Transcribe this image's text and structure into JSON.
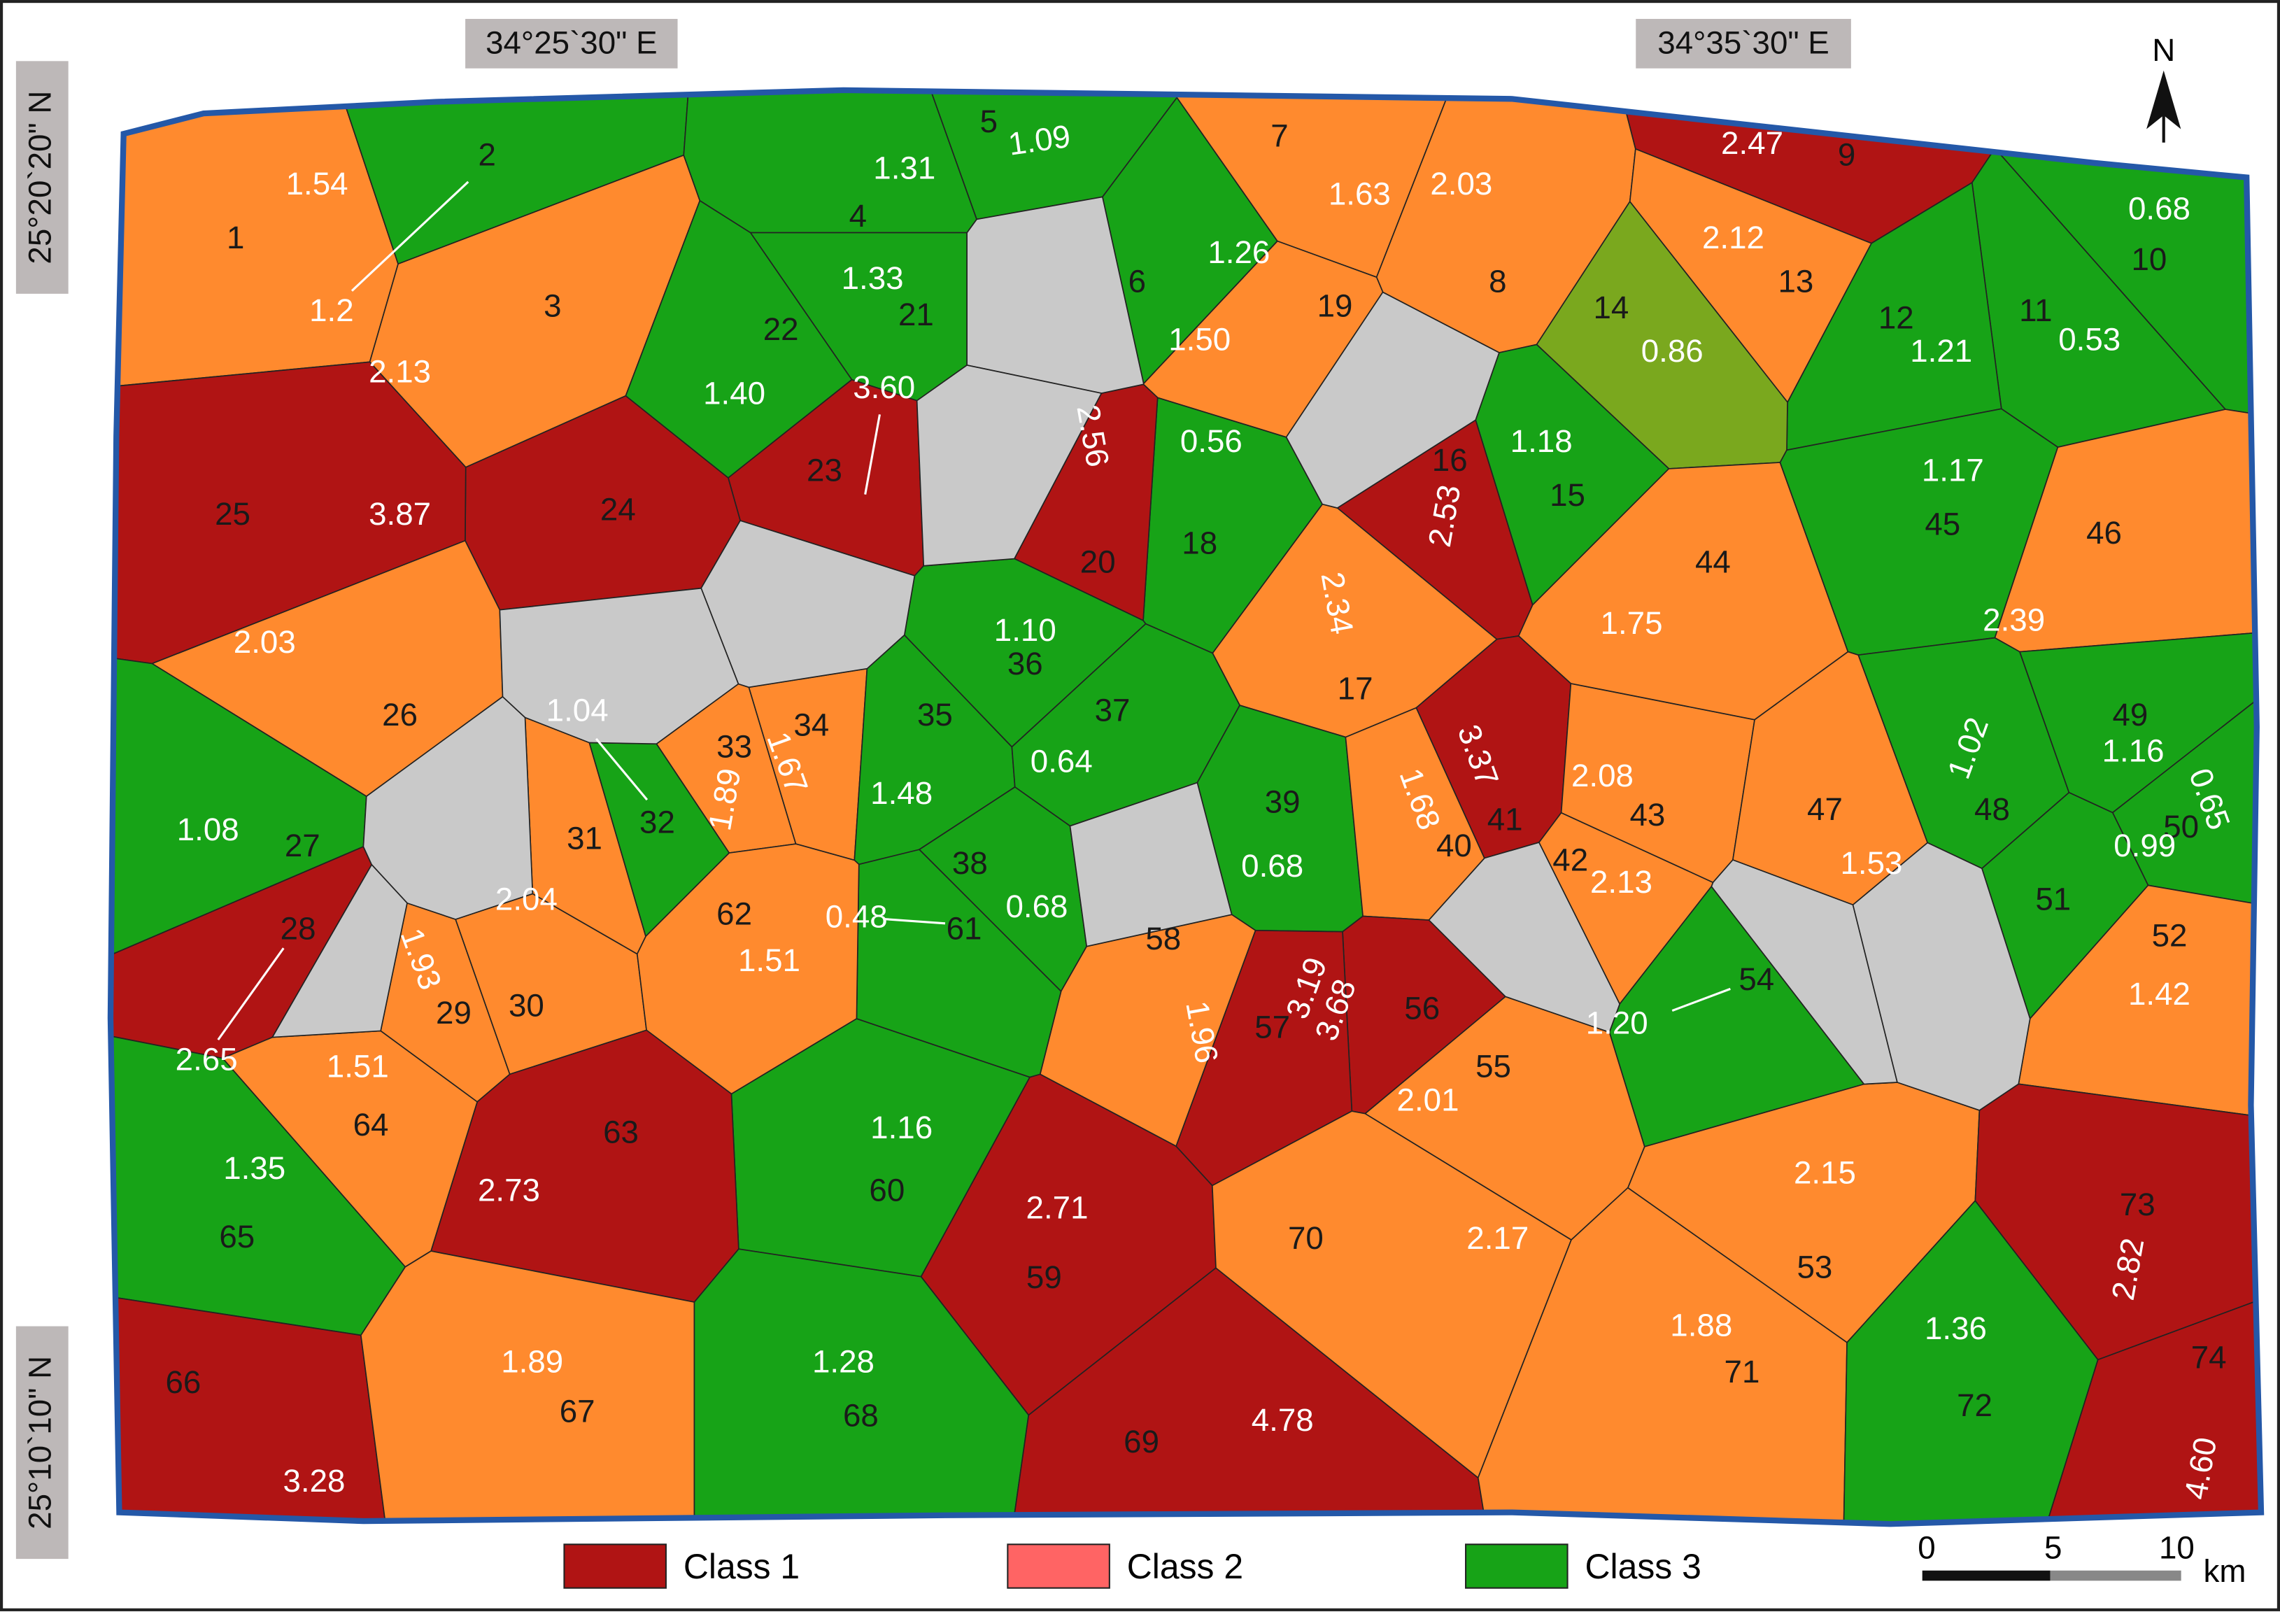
{
  "coordinates": {
    "top_left": "34°25`30\" E",
    "top_right": "34°35`30\" E",
    "left_top": "25°20`20\" N",
    "left_bottom": "25°10`10\" N"
  },
  "north": "N",
  "basins": [
    {
      "id": "1",
      "value": "1.54",
      "color": "#ff8a2e"
    },
    {
      "id": "2",
      "value": "1.2",
      "color": "#17a317"
    },
    {
      "id": "3",
      "value": "2.13",
      "color": "#ff8a2e"
    },
    {
      "id": "4",
      "value": "1.31",
      "color": "#17a317"
    },
    {
      "id": "5",
      "value": "1.09",
      "color": "#17a317"
    },
    {
      "id": "6",
      "value": "1.26",
      "color": "#17a317"
    },
    {
      "id": "7",
      "value": "1.63",
      "color": "#ff8a2e"
    },
    {
      "id": "8",
      "value": "2.03",
      "color": "#ff8a2e"
    },
    {
      "id": "9",
      "value": "2.47",
      "color": "#b01414"
    },
    {
      "id": "10",
      "value": "0.68",
      "color": "#17a317"
    },
    {
      "id": "11",
      "value": "0.53",
      "color": "#17a317"
    },
    {
      "id": "12",
      "value": "1.21",
      "color": "#17a317"
    },
    {
      "id": "13",
      "value": "2.12",
      "color": "#ff8a2e"
    },
    {
      "id": "14",
      "value": "0.86",
      "color": "#7aa81e"
    },
    {
      "id": "15",
      "value": "1.18",
      "color": "#17a317"
    },
    {
      "id": "16",
      "value": "2.53",
      "color": "#b01414"
    },
    {
      "id": "17",
      "value": "2.34",
      "color": "#ff8a2e"
    },
    {
      "id": "18",
      "value": "0.56",
      "color": "#17a317"
    },
    {
      "id": "19",
      "value": "1.50",
      "color": "#ff8a2e"
    },
    {
      "id": "20",
      "value": "2.56",
      "color": "#b01414"
    },
    {
      "id": "21",
      "value": "1.33",
      "color": "#17a317"
    },
    {
      "id": "22",
      "value": "1.40",
      "color": "#17a317"
    },
    {
      "id": "23",
      "value": "3.60",
      "color": "#b01414"
    },
    {
      "id": "24",
      "color": "#b01414"
    },
    {
      "id": "25",
      "value": "3.87",
      "color": "#b01414"
    },
    {
      "id": "26",
      "value": "2.03",
      "color": "#ff8a2e"
    },
    {
      "id": "27",
      "value": "1.08",
      "color": "#17a317"
    },
    {
      "id": "28",
      "value": "2.65",
      "color": "#b01414"
    },
    {
      "id": "29",
      "value": "1.93",
      "color": "#ff8a2e"
    },
    {
      "id": "30",
      "value": "2.04",
      "color": "#ff8a2e"
    },
    {
      "id": "31",
      "color": "#ff8a2e"
    },
    {
      "id": "32",
      "value": "1.04",
      "color": "#17a317"
    },
    {
      "id": "33",
      "value": "1.89",
      "color": "#ff8a2e"
    },
    {
      "id": "34",
      "value": "1.67",
      "color": "#ff8a2e"
    },
    {
      "id": "35",
      "value": "1.48",
      "color": "#17a317"
    },
    {
      "id": "36",
      "value": "1.10",
      "color": "#17a317"
    },
    {
      "id": "37",
      "value": "0.64",
      "color": "#17a317"
    },
    {
      "id": "38",
      "value": "0.68",
      "color": "#17a317"
    },
    {
      "id": "39",
      "value": "0.68",
      "color": "#17a317"
    },
    {
      "id": "40",
      "value": "1.68",
      "color": "#ff8a2e"
    },
    {
      "id": "41",
      "value": "3.37",
      "color": "#b01414"
    },
    {
      "id": "42",
      "value": "2.13",
      "color": "#ff8a2e"
    },
    {
      "id": "43",
      "value": "2.08",
      "color": "#ff8a2e"
    },
    {
      "id": "44",
      "value": "1.75",
      "color": "#ff8a2e"
    },
    {
      "id": "45",
      "value": "1.17",
      "color": "#17a317"
    },
    {
      "id": "46",
      "value": "2.39",
      "color": "#ff8a2e"
    },
    {
      "id": "47",
      "value": "1.53",
      "color": "#ff8a2e"
    },
    {
      "id": "48",
      "value": "1.02",
      "color": "#17a317"
    },
    {
      "id": "49",
      "value": "1.16",
      "color": "#17a317"
    },
    {
      "id": "50",
      "value": "0.65",
      "color": "#17a317"
    },
    {
      "id": "51",
      "value": "0.99",
      "color": "#17a317"
    },
    {
      "id": "52",
      "value": "1.42",
      "color": "#ff8a2e"
    },
    {
      "id": "53",
      "value": "2.15",
      "color": "#ff8a2e"
    },
    {
      "id": "54",
      "value": "1.20",
      "color": "#17a317"
    },
    {
      "id": "55",
      "value": "2.01",
      "color": "#ff8a2e"
    },
    {
      "id": "56",
      "value": "3.68",
      "color": "#b01414"
    },
    {
      "id": "57",
      "value": "3.19",
      "color": "#b01414"
    },
    {
      "id": "58",
      "value": "1.96",
      "color": "#ff8a2e"
    },
    {
      "id": "59",
      "value": "2.71",
      "color": "#b01414"
    },
    {
      "id": "60",
      "value": "1.16",
      "color": "#17a317"
    },
    {
      "id": "61",
      "value": "0.48",
      "color": "#17a317"
    },
    {
      "id": "62",
      "value": "1.51",
      "color": "#ff8a2e"
    },
    {
      "id": "63",
      "value": "2.73",
      "color": "#b01414"
    },
    {
      "id": "64",
      "value": "1.51",
      "color": "#ff8a2e"
    },
    {
      "id": "65",
      "value": "1.35",
      "color": "#17a317"
    },
    {
      "id": "66",
      "value": "3.28",
      "color": "#b01414"
    },
    {
      "id": "67",
      "value": "1.89",
      "color": "#ff8a2e"
    },
    {
      "id": "68",
      "value": "1.28",
      "color": "#17a317"
    },
    {
      "id": "69",
      "value": "4.78",
      "color": "#b01414"
    },
    {
      "id": "70",
      "value": "2.17",
      "color": "#ff8a2e"
    },
    {
      "id": "71",
      "value": "1.88",
      "color": "#ff8a2e"
    },
    {
      "id": "72",
      "value": "1.36",
      "color": "#17a317"
    },
    {
      "id": "73",
      "value": "2.82",
      "color": "#b01414"
    },
    {
      "id": "74",
      "value": "4.60",
      "color": "#b01414"
    }
  ],
  "legend": [
    {
      "label": "Class 1",
      "color": "#b01414"
    },
    {
      "label": "Class 2",
      "color": "#ff6464"
    },
    {
      "label": "Class 3",
      "color": "#17a317"
    }
  ],
  "scale_bar": {
    "ticks": [
      "0",
      "5",
      "10"
    ],
    "unit": "km"
  }
}
